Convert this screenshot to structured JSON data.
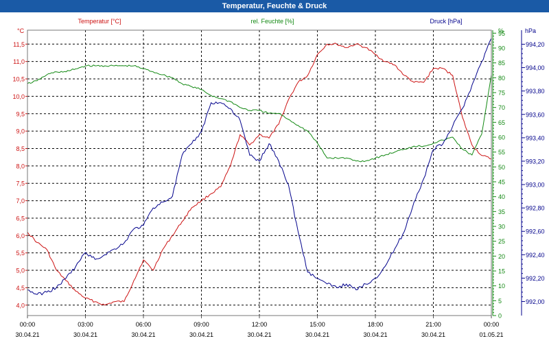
{
  "window": {
    "title": "Temperatur, Feuchte & Druck"
  },
  "colors": {
    "temperature": "#cc1111",
    "humidity": "#118811",
    "pressure": "#00008b",
    "grid": "#000000"
  },
  "chart_data": {
    "type": "line",
    "title": "Temperatur, Feuchte & Druck",
    "grid": true,
    "x": {
      "ticks": [
        {
          "time": "00:00",
          "date": "30.04.21"
        },
        {
          "time": "03:00",
          "date": "30.04.21"
        },
        {
          "time": "06:00",
          "date": "30.04.21"
        },
        {
          "time": "09:00",
          "date": "30.04.21"
        },
        {
          "time": "12:00",
          "date": "30.04.21"
        },
        {
          "time": "15:00",
          "date": "30.04.21"
        },
        {
          "time": "18:00",
          "date": "30.04.21"
        },
        {
          "time": "21:00",
          "date": "30.04.21"
        },
        {
          "time": "00:00",
          "date": "01.05.21"
        }
      ]
    },
    "axes": {
      "temperature": {
        "title": "Temperatur [°C]",
        "unit": "°C",
        "range": [
          3.7,
          11.9
        ],
        "ticks": [
          "4,0",
          "4,5",
          "5,0",
          "5,5",
          "6,0",
          "6,5",
          "7,0",
          "7,5",
          "8,0",
          "8,5",
          "9,0",
          "9,5",
          "10,0",
          "10,5",
          "11,0",
          "11,5"
        ]
      },
      "humidity": {
        "title": "rel. Feuchte [%]",
        "unit": "%",
        "range": [
          0,
          96
        ],
        "ticks": [
          "0",
          "5",
          "10",
          "15",
          "20",
          "25",
          "30",
          "35",
          "40",
          "45",
          "50",
          "55",
          "60",
          "65",
          "70",
          "75",
          "80",
          "85",
          "90",
          "95",
          "%"
        ]
      },
      "pressure": {
        "title": "Druck [hPa]",
        "unit": "hPa",
        "range": [
          991.88,
          994.32
        ],
        "ticks": [
          "992,00",
          "992,20",
          "992,40",
          "992,60",
          "992,80",
          "993,00",
          "993,20",
          "993,40",
          "993,60",
          "993,80",
          "994,00",
          "994,20"
        ]
      }
    },
    "series": [
      {
        "name": "Temperatur [°C]",
        "axis": "temperature",
        "x": [
          0,
          0.5,
          1,
          1.5,
          2,
          2.5,
          3,
          3.5,
          4,
          4.5,
          5,
          5.5,
          6,
          6.5,
          7,
          7.5,
          8,
          8.5,
          9,
          9.5,
          10,
          10.5,
          11,
          11.5,
          12,
          12.5,
          13,
          13.5,
          14,
          14.5,
          15,
          15.5,
          16,
          16.5,
          17,
          17.5,
          18,
          18.5,
          19,
          19.5,
          20,
          20.5,
          21,
          21.5,
          22,
          22.5,
          23,
          23.5,
          24
        ],
        "values": [
          6.1,
          5.8,
          5.6,
          5.0,
          4.7,
          4.4,
          4.2,
          4.1,
          4.0,
          4.1,
          4.1,
          4.7,
          5.3,
          5.0,
          5.6,
          6.0,
          6.4,
          6.8,
          7.0,
          7.2,
          7.4,
          8.0,
          8.9,
          8.6,
          8.9,
          8.8,
          9.2,
          9.9,
          10.4,
          10.6,
          11.2,
          11.5,
          11.5,
          11.4,
          11.5,
          11.4,
          11.2,
          11.0,
          10.9,
          10.6,
          10.4,
          10.4,
          10.8,
          10.8,
          10.6,
          9.4,
          8.6,
          8.3,
          8.2
        ]
      },
      {
        "name": "rel. Feuchte [%]",
        "axis": "humidity",
        "x": [
          0,
          0.5,
          1,
          1.5,
          2,
          2.5,
          3,
          3.5,
          4,
          4.5,
          5,
          5.5,
          6,
          6.5,
          7,
          7.5,
          8,
          8.5,
          9,
          9.5,
          10,
          10.5,
          11,
          11.5,
          12,
          12.5,
          13,
          13.5,
          14,
          14.5,
          15,
          15.5,
          16,
          16.5,
          17,
          17.5,
          18,
          18.5,
          19,
          19.5,
          20,
          20.5,
          21,
          21.5,
          22,
          22.5,
          23,
          23.5,
          24
        ],
        "values": [
          78,
          79,
          81,
          82,
          82,
          83,
          84,
          84,
          84,
          84,
          84,
          84,
          83,
          82,
          81,
          80,
          78,
          77,
          76,
          74,
          73,
          72,
          70,
          69,
          69,
          68,
          68,
          66,
          64,
          62,
          58,
          53,
          53,
          53,
          52,
          52,
          53,
          54,
          55,
          56,
          57,
          57,
          58,
          59,
          60,
          56,
          54,
          61,
          81
        ]
      },
      {
        "name": "Druck [hPa]",
        "axis": "pressure",
        "x": [
          0,
          0.5,
          1,
          1.5,
          2,
          2.5,
          3,
          3.5,
          4,
          4.5,
          5,
          5.5,
          6,
          6.5,
          7,
          7.5,
          8,
          8.5,
          9,
          9.5,
          10,
          10.5,
          11,
          11.5,
          12,
          12.5,
          13,
          13.5,
          14,
          14.5,
          15,
          15.5,
          16,
          16.5,
          17,
          17.5,
          18,
          18.5,
          19,
          19.5,
          20,
          20.5,
          21,
          21.5,
          22,
          22.5,
          23,
          23.5,
          24
        ],
        "values": [
          992.1,
          992.06,
          992.08,
          992.12,
          992.2,
          992.3,
          992.42,
          992.36,
          992.4,
          992.45,
          992.5,
          992.62,
          992.65,
          992.8,
          992.85,
          992.9,
          993.25,
          993.35,
          993.45,
          993.7,
          993.7,
          993.65,
          993.55,
          993.25,
          993.2,
          993.35,
          993.2,
          993.0,
          992.6,
          992.25,
          992.2,
          992.15,
          992.12,
          992.15,
          992.1,
          992.15,
          992.2,
          992.3,
          992.45,
          992.6,
          992.85,
          993.05,
          993.3,
          993.35,
          993.5,
          993.65,
          993.85,
          994.05,
          994.25
        ]
      }
    ]
  }
}
